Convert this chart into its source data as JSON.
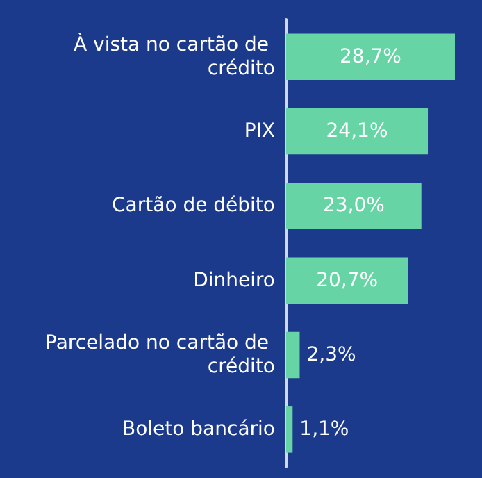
{
  "chart_data": {
    "type": "bar",
    "orientation": "horizontal",
    "categories": [
      "À vista no cartão de crédito",
      "PIX",
      "Cartão de débito",
      "Dinheiro",
      "Parcelado no cartão de crédito",
      "Boleto bancário"
    ],
    "values": [
      28.7,
      24.1,
      23.0,
      20.7,
      2.3,
      1.1
    ],
    "value_labels": [
      "28,7%",
      "24,1%",
      "23,0%",
      "20,7%",
      "2,3%",
      "1,1%"
    ],
    "color": "#66d4a4",
    "grid": false
  }
}
